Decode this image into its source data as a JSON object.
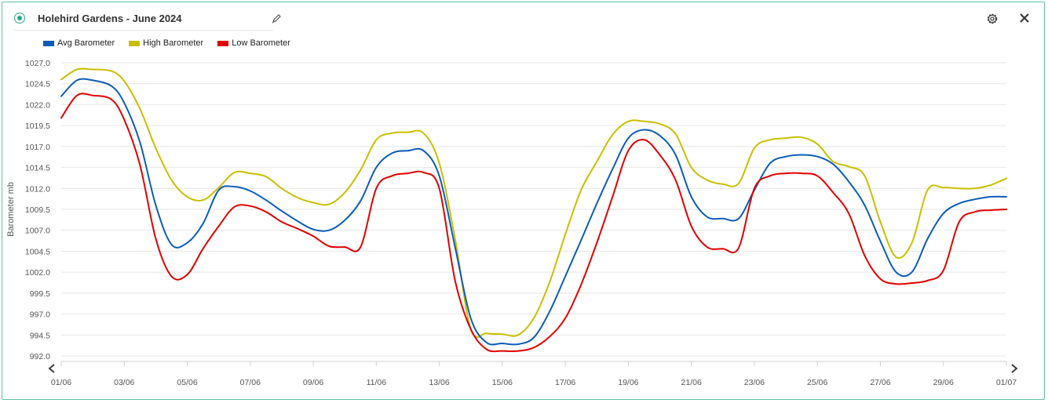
{
  "header": {
    "title": "Holehird Gardens - June 2024"
  },
  "icons": {
    "status": "status-dot-icon",
    "edit": "pencil-icon",
    "settings": "gear-icon",
    "close": "close-icon"
  },
  "colors": {
    "accent": "#2ea58a",
    "avg": "#0b5cb8",
    "high": "#c9bf00",
    "low": "#e00000",
    "grid": "#e6e6e6"
  },
  "chart_data": {
    "type": "line",
    "ylabel": "Barometer mb",
    "xlabel": "",
    "ylim": [
      992.0,
      1027.0
    ],
    "yticks": [
      "992.0",
      "994.5",
      "997.0",
      "999.5",
      "1002.0",
      "1004.5",
      "1007.0",
      "1009.5",
      "1012.0",
      "1014.5",
      "1017.0",
      "1019.5",
      "1022.0",
      "1024.5",
      "1027.0"
    ],
    "xticks": [
      "01/06",
      "03/06",
      "05/06",
      "07/06",
      "09/06",
      "11/06",
      "13/06",
      "15/06",
      "17/06",
      "19/06",
      "21/06",
      "23/06",
      "25/06",
      "27/06",
      "29/06",
      "01/07"
    ],
    "x_domain_days": [
      0,
      30
    ],
    "grid": true,
    "legend_position": "top-left",
    "series": [
      {
        "name": "Avg Barometer",
        "color": "#0b5cb8",
        "points": [
          [
            0,
            1023.0
          ],
          [
            0.5,
            1024.9
          ],
          [
            1,
            1024.9
          ],
          [
            1.6,
            1024.2
          ],
          [
            2,
            1022.2
          ],
          [
            2.5,
            1017.5
          ],
          [
            3,
            1010.0
          ],
          [
            3.5,
            1005.3
          ],
          [
            4,
            1005.5
          ],
          [
            4.5,
            1007.8
          ],
          [
            5,
            1011.8
          ],
          [
            5.5,
            1012.2
          ],
          [
            6,
            1011.7
          ],
          [
            6.5,
            1010.6
          ],
          [
            7,
            1009.3
          ],
          [
            7.5,
            1008.1
          ],
          [
            8,
            1007.1
          ],
          [
            8.5,
            1007.0
          ],
          [
            9,
            1008.2
          ],
          [
            9.5,
            1010.5
          ],
          [
            10,
            1014.5
          ],
          [
            10.5,
            1016.2
          ],
          [
            11,
            1016.5
          ],
          [
            11.5,
            1016.5
          ],
          [
            12,
            1013.5
          ],
          [
            12.5,
            1005.0
          ],
          [
            13,
            996.5
          ],
          [
            13.5,
            993.6
          ],
          [
            14,
            993.5
          ],
          [
            14.5,
            993.4
          ],
          [
            15,
            994.2
          ],
          [
            15.5,
            997.3
          ],
          [
            16,
            1001.5
          ],
          [
            16.5,
            1005.8
          ],
          [
            17,
            1010.2
          ],
          [
            17.5,
            1014.3
          ],
          [
            18,
            1018.0
          ],
          [
            18.5,
            1019.0
          ],
          [
            19,
            1018.3
          ],
          [
            19.5,
            1016.0
          ],
          [
            20,
            1011.0
          ],
          [
            20.5,
            1008.6
          ],
          [
            21,
            1008.4
          ],
          [
            21.5,
            1008.4
          ],
          [
            22,
            1011.8
          ],
          [
            22.5,
            1015.0
          ],
          [
            23,
            1015.8
          ],
          [
            23.5,
            1016.0
          ],
          [
            24,
            1015.8
          ],
          [
            24.5,
            1014.9
          ],
          [
            25,
            1012.8
          ],
          [
            25.5,
            1010.0
          ],
          [
            26,
            1005.7
          ],
          [
            26.5,
            1002.0
          ],
          [
            27,
            1002.0
          ],
          [
            27.5,
            1006.0
          ],
          [
            28,
            1009.0
          ],
          [
            28.5,
            1010.2
          ],
          [
            29,
            1010.7
          ],
          [
            29.5,
            1011.0
          ],
          [
            30,
            1011.0
          ]
        ]
      },
      {
        "name": "High Barometer",
        "color": "#c9bf00",
        "points": [
          [
            0,
            1025.0
          ],
          [
            0.5,
            1026.2
          ],
          [
            1,
            1026.2
          ],
          [
            1.6,
            1026.0
          ],
          [
            2,
            1024.8
          ],
          [
            2.5,
            1021.5
          ],
          [
            3,
            1016.8
          ],
          [
            3.5,
            1013.0
          ],
          [
            4,
            1011.0
          ],
          [
            4.5,
            1010.6
          ],
          [
            5,
            1012.1
          ],
          [
            5.5,
            1013.9
          ],
          [
            6,
            1013.8
          ],
          [
            6.5,
            1013.4
          ],
          [
            7,
            1012.0
          ],
          [
            7.5,
            1010.9
          ],
          [
            8,
            1010.3
          ],
          [
            8.5,
            1010.1
          ],
          [
            9,
            1011.5
          ],
          [
            9.5,
            1014.2
          ],
          [
            10,
            1017.8
          ],
          [
            10.5,
            1018.6
          ],
          [
            11,
            1018.7
          ],
          [
            11.5,
            1018.6
          ],
          [
            12,
            1015.0
          ],
          [
            12.5,
            1006.0
          ],
          [
            13,
            995.2
          ],
          [
            13.5,
            994.7
          ],
          [
            14,
            994.6
          ],
          [
            14.5,
            994.5
          ],
          [
            15,
            996.5
          ],
          [
            15.5,
            1000.8
          ],
          [
            16,
            1006.5
          ],
          [
            16.5,
            1011.8
          ],
          [
            17,
            1015.2
          ],
          [
            17.5,
            1018.4
          ],
          [
            18,
            1020.0
          ],
          [
            18.5,
            1020.0
          ],
          [
            19,
            1019.7
          ],
          [
            19.5,
            1018.5
          ],
          [
            20,
            1014.5
          ],
          [
            20.5,
            1013.0
          ],
          [
            21,
            1012.5
          ],
          [
            21.5,
            1012.6
          ],
          [
            22,
            1016.8
          ],
          [
            22.5,
            1017.8
          ],
          [
            23,
            1018.0
          ],
          [
            23.5,
            1018.1
          ],
          [
            24,
            1017.3
          ],
          [
            24.5,
            1015.2
          ],
          [
            25,
            1014.6
          ],
          [
            25.5,
            1013.5
          ],
          [
            26,
            1008.0
          ],
          [
            26.5,
            1003.8
          ],
          [
            27,
            1005.5
          ],
          [
            27.5,
            1011.8
          ],
          [
            28,
            1012.1
          ],
          [
            28.5,
            1012.0
          ],
          [
            29,
            1012.0
          ],
          [
            29.5,
            1012.4
          ],
          [
            30,
            1013.2
          ]
        ]
      },
      {
        "name": "Low Barometer",
        "color": "#e00000",
        "points": [
          [
            0,
            1020.4
          ],
          [
            0.5,
            1023.1
          ],
          [
            1,
            1023.1
          ],
          [
            1.6,
            1022.6
          ],
          [
            2,
            1020.2
          ],
          [
            2.5,
            1014.8
          ],
          [
            3,
            1006.0
          ],
          [
            3.5,
            1001.5
          ],
          [
            4,
            1001.7
          ],
          [
            4.5,
            1004.8
          ],
          [
            5,
            1007.5
          ],
          [
            5.5,
            1009.8
          ],
          [
            6,
            1009.9
          ],
          [
            6.5,
            1009.2
          ],
          [
            7,
            1008.0
          ],
          [
            7.5,
            1007.2
          ],
          [
            8,
            1006.3
          ],
          [
            8.5,
            1005.1
          ],
          [
            9,
            1005.0
          ],
          [
            9.5,
            1005.0
          ],
          [
            10,
            1012.0
          ],
          [
            10.5,
            1013.5
          ],
          [
            11,
            1013.8
          ],
          [
            11.5,
            1013.9
          ],
          [
            12,
            1012.0
          ],
          [
            12.5,
            1001.0
          ],
          [
            13,
            995.2
          ],
          [
            13.5,
            992.8
          ],
          [
            14,
            992.6
          ],
          [
            14.5,
            992.6
          ],
          [
            15,
            993.0
          ],
          [
            15.5,
            994.3
          ],
          [
            16,
            996.5
          ],
          [
            16.5,
            1000.5
          ],
          [
            17,
            1005.5
          ],
          [
            17.5,
            1011.0
          ],
          [
            18,
            1016.5
          ],
          [
            18.5,
            1017.8
          ],
          [
            19,
            1016.0
          ],
          [
            19.5,
            1013.0
          ],
          [
            20,
            1007.5
          ],
          [
            20.5,
            1005.0
          ],
          [
            21,
            1004.8
          ],
          [
            21.5,
            1004.9
          ],
          [
            22,
            1012.0
          ],
          [
            22.5,
            1013.5
          ],
          [
            23,
            1013.8
          ],
          [
            23.5,
            1013.8
          ],
          [
            24,
            1013.5
          ],
          [
            24.5,
            1011.5
          ],
          [
            25,
            1009.0
          ],
          [
            25.5,
            1004.0
          ],
          [
            26,
            1001.2
          ],
          [
            26.5,
            1000.6
          ],
          [
            27,
            1000.7
          ],
          [
            27.5,
            1001.0
          ],
          [
            28,
            1002.2
          ],
          [
            28.5,
            1008.0
          ],
          [
            29,
            1009.2
          ],
          [
            29.5,
            1009.4
          ],
          [
            30,
            1009.5
          ]
        ]
      }
    ]
  }
}
